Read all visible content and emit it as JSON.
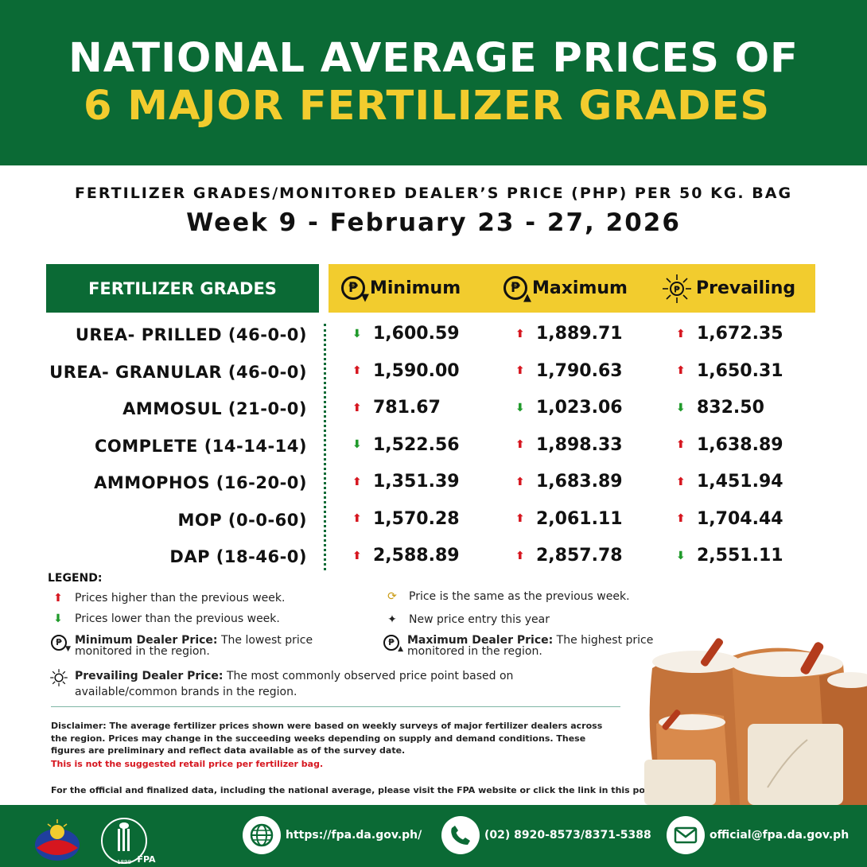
{
  "banner": {
    "line1": "NATIONAL AVERAGE PRICES OF",
    "line2": "6 MAJOR FERTILIZER GRADES"
  },
  "subtitle": "FERTILIZER GRADES/MONITORED DEALER’S PRICE (PHP) PER 50 KG. BAG",
  "week": "Week 9 - February 23 - 27, 2026",
  "table": {
    "grades_header": "FERTILIZER GRADES",
    "col_min": "Minimum",
    "col_max": "Maximum",
    "col_prev": "Prevailing",
    "peso_symbol": "₱",
    "rows": [
      {
        "name": "UREA- PRILLED (46-0-0)",
        "min": "1,600.59",
        "min_trend": "down",
        "max": "1,889.71",
        "max_trend": "up",
        "prev": "1,672.35",
        "prev_trend": "up"
      },
      {
        "name": "UREA- GRANULAR (46-0-0)",
        "min": "1,590.00",
        "min_trend": "up",
        "max": "1,790.63",
        "max_trend": "up",
        "prev": "1,650.31",
        "prev_trend": "up"
      },
      {
        "name": "AMMOSUL (21-0-0)",
        "min": "781.67",
        "min_trend": "up",
        "max": "1,023.06",
        "max_trend": "down",
        "prev": "832.50",
        "prev_trend": "down"
      },
      {
        "name": "COMPLETE (14-14-14)",
        "min": "1,522.56",
        "min_trend": "down",
        "max": "1,898.33",
        "max_trend": "up",
        "prev": "1,638.89",
        "prev_trend": "up"
      },
      {
        "name": "AMMOPHOS (16-20-0)",
        "min": "1,351.39",
        "min_trend": "up",
        "max": "1,683.89",
        "max_trend": "up",
        "prev": "1,451.94",
        "prev_trend": "up"
      },
      {
        "name": "MOP (0-0-60)",
        "min": "1,570.28",
        "min_trend": "up",
        "max": "2,061.11",
        "max_trend": "up",
        "prev": "1,704.44",
        "prev_trend": "up"
      },
      {
        "name": "DAP (18-46-0)",
        "min": "2,588.89",
        "min_trend": "up",
        "max": "2,857.78",
        "max_trend": "up",
        "prev": "2,551.11",
        "prev_trend": "down"
      }
    ]
  },
  "legend": {
    "title": "LEGEND:",
    "higher": "Prices higher than the previous week.",
    "lower": "Prices lower than the previous week.",
    "same": "Price is the same as the previous week.",
    "new": "New price entry this year",
    "min_term": "Minimum Dealer Price:",
    "min_desc": "The lowest price monitored in the region.",
    "max_term": "Maximum Dealer Price:",
    "max_desc": "The highest price monitored in the region.",
    "prev_term": "Prevailing Dealer Price:",
    "prev_desc": "The most commonly observed price point based on available/common brands in the region."
  },
  "disclaimer": {
    "text": "Disclaimer: The average fertilizer prices shown were based on weekly surveys of major fertilizer dealers across the region. Prices may change in the succeeding weeks depending on supply and demand conditions. These figures are preliminary and reflect data available as of the survey date.",
    "red": "This is not the suggested retail price per fertilizer bag.",
    "official": "For the official and finalized data, including the national average, please visit the FPA website or click the link in this post."
  },
  "footer": {
    "website": "https://fpa.da.gov.ph/",
    "phone": "(02) 8920-8573/8371-5388",
    "email": "official@fpa.da.gov.ph",
    "fpa_label": "FPA",
    "da_year": "1898"
  },
  "icons": {
    "up": "arrow-up-icon",
    "down": "arrow-down-icon",
    "same": "refresh-icon",
    "new": "sparkle-icon",
    "web": "globe-icon",
    "phone": "phone-icon",
    "email": "envelope-icon"
  },
  "colors": {
    "green": "#0b6a35",
    "yellow": "#f2cc2e",
    "red": "#d6161f",
    "arrow_green": "#1f9a2a"
  }
}
